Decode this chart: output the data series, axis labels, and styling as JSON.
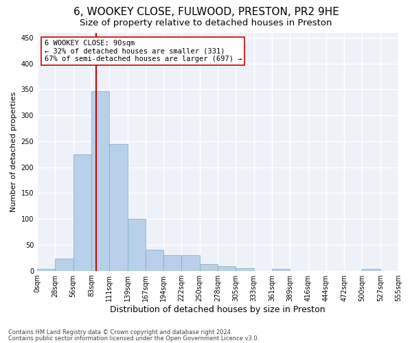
{
  "title1": "6, WOOKEY CLOSE, FULWOOD, PRESTON, PR2 9HE",
  "title2": "Size of property relative to detached houses in Preston",
  "xlabel": "Distribution of detached houses by size in Preston",
  "ylabel": "Number of detached properties",
  "bin_labels": [
    "0sqm",
    "28sqm",
    "56sqm",
    "83sqm",
    "111sqm",
    "139sqm",
    "167sqm",
    "194sqm",
    "222sqm",
    "250sqm",
    "278sqm",
    "305sqm",
    "333sqm",
    "361sqm",
    "389sqm",
    "416sqm",
    "444sqm",
    "472sqm",
    "500sqm",
    "527sqm",
    "555sqm"
  ],
  "bar_values": [
    3,
    23,
    225,
    347,
    245,
    100,
    40,
    30,
    30,
    13,
    9,
    5,
    0,
    3,
    0,
    0,
    0,
    0,
    3,
    0
  ],
  "bar_color": "#b8d0e8",
  "bar_edge_color": "#7aaac8",
  "vline_color": "#cc0000",
  "annotation_line1": "6 WOOKEY CLOSE: 90sqm",
  "annotation_line2": "← 32% of detached houses are smaller (331)",
  "annotation_line3": "67% of semi-detached houses are larger (697) →",
  "annotation_box_color": "#ffffff",
  "annotation_box_edge": "#cc0000",
  "footer1": "Contains HM Land Registry data © Crown copyright and database right 2024.",
  "footer2": "Contains public sector information licensed under the Open Government Licence v3.0.",
  "ylim": [
    0,
    460
  ],
  "yticks": [
    0,
    50,
    100,
    150,
    200,
    250,
    300,
    350,
    400,
    450
  ],
  "bg_color": "#eef2f8",
  "grid_color": "#ffffff",
  "title1_fontsize": 11,
  "title2_fontsize": 9.5,
  "tick_fontsize": 7,
  "ylabel_fontsize": 8,
  "xlabel_fontsize": 9,
  "annotation_fontsize": 7.5,
  "footer_fontsize": 6
}
